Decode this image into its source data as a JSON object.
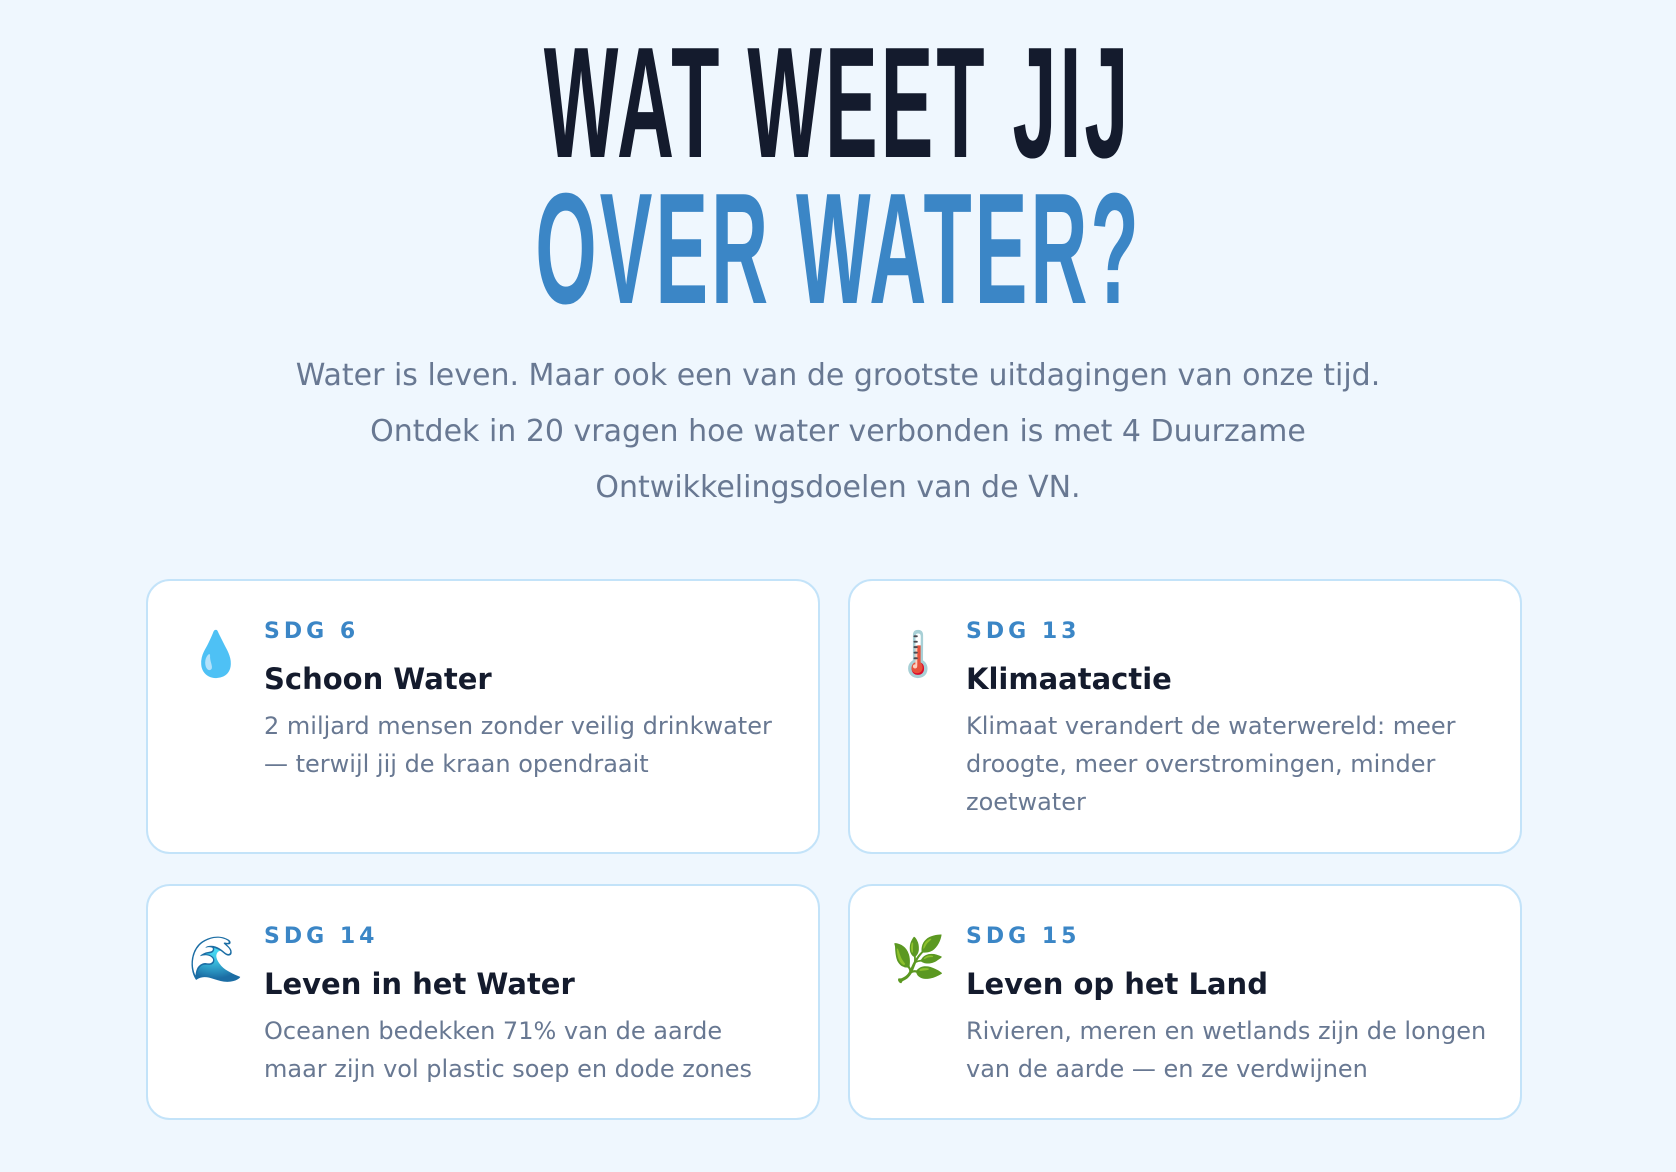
{
  "hero": {
    "title_line1": "WAT WEET JIJ",
    "title_line2": "OVER WATER?",
    "subtitle_lines": [
      "Water is leven. Maar ook een van de grootste uitdagingen van onze tijd.",
      "Ontdek in 20 vragen hoe water verbonden is met 4 Duurzame",
      "Ontwikkelingsdoelen van de VN."
    ]
  },
  "colors": {
    "background": "#eff7fe",
    "title_dark": "#141b2d",
    "accent": "#3b86c6",
    "muted": "#687892",
    "card_border": "#c3e3f9"
  },
  "cards": [
    {
      "icon": "water-drop-icon",
      "emoji": "💧",
      "sdg": "SDG 6",
      "title": "Schoon Water",
      "desc": "2 miljard mensen zonder veilig drinkwater — terwijl jij de kraan opendraait"
    },
    {
      "icon": "thermometer-icon",
      "emoji": "🌡️",
      "sdg": "SDG 13",
      "title": "Klimaatactie",
      "desc": "Klimaat verandert de waterwereld: meer droogte, meer overstromingen, minder zoetwater"
    },
    {
      "icon": "wave-icon",
      "emoji": "🌊",
      "sdg": "SDG 14",
      "title": "Leven in het Water",
      "desc": "Oceanen bedekken 71% van de aarde maar zijn vol plastic soep en dode zones"
    },
    {
      "icon": "herb-icon",
      "emoji": "🌿",
      "sdg": "SDG 15",
      "title": "Leven op het Land",
      "desc": "Rivieren, meren en wetlands zijn de longen van de aarde — en ze verdwijnen"
    }
  ]
}
